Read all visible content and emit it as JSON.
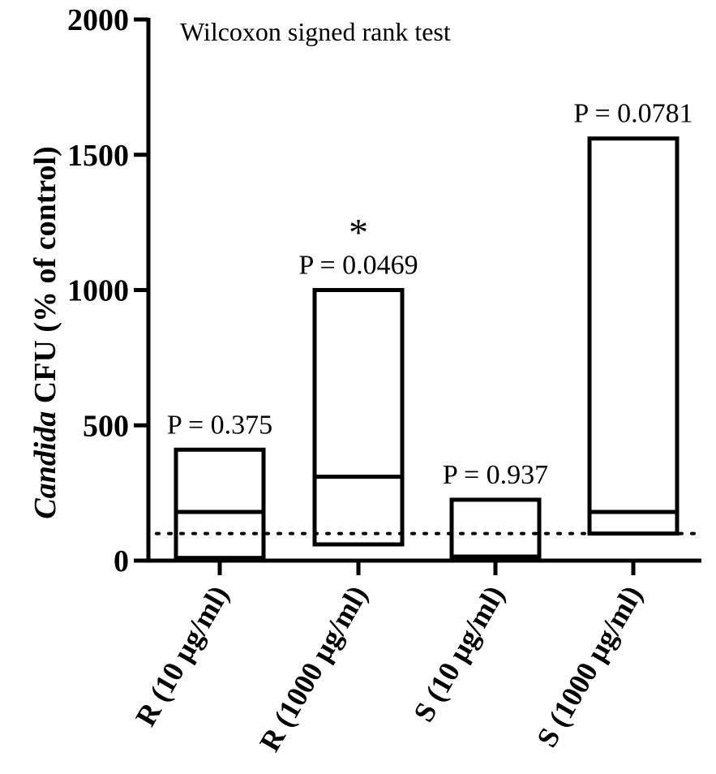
{
  "chart_data": {
    "type": "bar",
    "title": "Wilcoxon signed rank test",
    "ylabel_italic": "Candida",
    "ylabel_rest": " CFU (% of control)",
    "ylim": [
      0,
      2000
    ],
    "yticks": [
      0,
      500,
      1000,
      1500,
      2000
    ],
    "reference_line": 100,
    "categories": [
      "R (10 μg/ml)",
      "R (1000 μg/ml)",
      "S (10 μg/ml)",
      "S (1000 μg/ml)"
    ],
    "boxes": [
      {
        "min": 10,
        "median": 180,
        "max": 410,
        "annotation": "P = 0.375",
        "significance": ""
      },
      {
        "min": 60,
        "median": 310,
        "max": 1000,
        "annotation": "P = 0.0469",
        "significance": "*"
      },
      {
        "min": 5,
        "median": 15,
        "max": 225,
        "annotation": "P = 0.937",
        "significance": ""
      },
      {
        "min": 100,
        "median": 180,
        "max": 1560,
        "annotation": "P = 0.0781",
        "significance": ""
      }
    ],
    "grid": false,
    "legend": "none"
  }
}
